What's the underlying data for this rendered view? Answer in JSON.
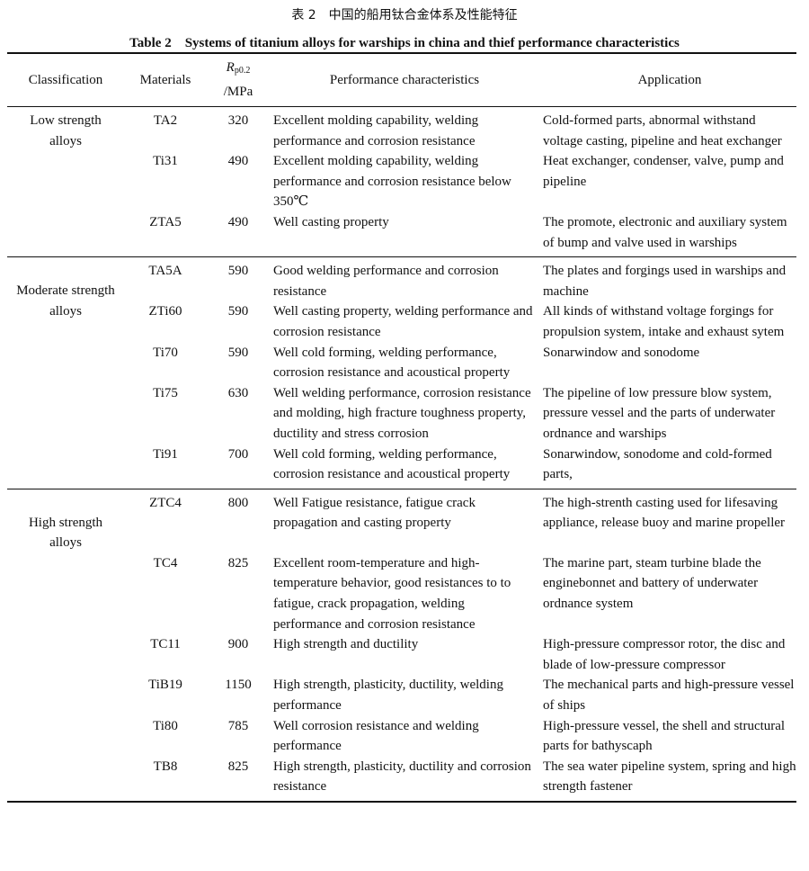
{
  "caption_cn": "表 2　中国的船用钛合金体系及性能特征",
  "caption_en": "Table 2　Systems of titanium alloys for warships in china and thief performance characteristics",
  "header": {
    "classification": "Classification",
    "materials": "Materials",
    "rp_symbol": "R",
    "rp_subscript": "p0.2",
    "rp_unit": "/MPa",
    "performance": "Performance characteristics",
    "application": "Application"
  },
  "sections": [
    {
      "classification": "Low strength alloys",
      "rows": [
        {
          "material": "TA2",
          "rp": "320",
          "performance": "Excellent molding capability, welding performance and corrosion resistance",
          "application": "Cold-formed parts, abnormal withstand voltage casting, pipeline and heat exchanger"
        },
        {
          "material": "Ti31",
          "rp": "490",
          "performance": "Excellent molding capability, welding performance and corrosion resistance below 350℃",
          "application": "Heat exchanger, condenser, valve, pump and pipeline"
        },
        {
          "material": "ZTA5",
          "rp": "490",
          "performance": "Well casting property",
          "application": "The promote, electronic and auxiliary system of bump and valve used in warships"
        }
      ]
    },
    {
      "classification": "Moderate strength alloys",
      "rows": [
        {
          "material": "TA5A",
          "rp": "590",
          "performance": "Good welding performance and corrosion resistance",
          "application": "The plates and forgings used in warships and machine"
        },
        {
          "material": "ZTi60",
          "rp": "590",
          "performance": "Well casting property, welding performance and corrosion resistance",
          "application": "All kinds of withstand voltage forgings for propulsion system, intake and exhaust sytem"
        },
        {
          "material": "Ti70",
          "rp": "590",
          "performance": "Well cold forming, welding performance, corrosion resistance and acoustical property",
          "application": "Sonarwindow and sonodome"
        },
        {
          "material": "Ti75",
          "rp": "630",
          "performance": "Well welding performance, corrosion resistance and molding, high fracture toughness property, ductility and stress corrosion",
          "application": "The pipeline of low pressure blow system, pressure vessel and the parts of underwater ordnance and warships"
        },
        {
          "material": "Ti91",
          "rp": "700",
          "performance": "Well cold forming, welding performance, corrosion resistance and acoustical property",
          "application": "Sonarwindow, sonodome and cold-formed parts,"
        }
      ]
    },
    {
      "classification": "High strength alloys",
      "rows": [
        {
          "material": "ZTC4",
          "rp": "800",
          "performance": "Well Fatigue resistance, fatigue crack propagation and casting property",
          "application": "The high-strenth casting used for lifesaving appliance, release buoy and marine propeller",
          "extra_line": true
        },
        {
          "material": "TC4",
          "rp": "825",
          "performance": "Excellent room-temperature and high-temperature behavior, good resistances to to fatigue, crack propagation, welding performance and corrosion resistance",
          "application": "The marine part, steam turbine blade the enginebonnet and battery of underwater ordnance system"
        },
        {
          "material": "TC11",
          "rp": "900",
          "performance": "High strength and ductility",
          "application": "High-pressure compressor rotor, the disc and blade of low-pressure compressor"
        },
        {
          "material": "TiB19",
          "rp": "1150",
          "performance": "High strength, plasticity, ductility, welding performance",
          "application": "The mechanical parts and high-pressure vessel of ships"
        },
        {
          "material": "Ti80",
          "rp": "785",
          "performance": "Well corrosion resistance and welding performance",
          "application": "High-pressure vessel, the shell and structural parts for bathyscaph"
        },
        {
          "material": "TB8",
          "rp": "825",
          "performance": "High strength, plasticity, ductility and corrosion resistance",
          "application": "The sea water pipeline system, spring and high strength fastener"
        }
      ]
    }
  ]
}
